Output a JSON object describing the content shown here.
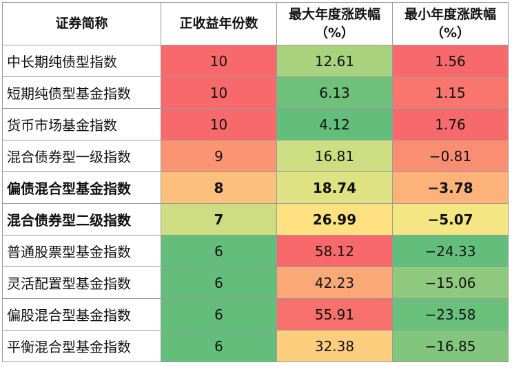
{
  "headers": [
    {
      "line1": "证券简称",
      "line2": ""
    },
    {
      "line1": "正收益年份数",
      "line2": ""
    },
    {
      "line1": "最大年度涨跌幅",
      "line2": "（%）"
    },
    {
      "line1": "最小年度涨跌幅",
      "line2": "（%）"
    }
  ],
  "rows": [
    {
      "name": "中长期纯债型指数",
      "positive_years": "10",
      "max_change": "12.61",
      "min_change": "1.56",
      "bold": false,
      "colors": [
        "#f8696b",
        "#a9d27f",
        "#f8696b"
      ]
    },
    {
      "name": "短期纯债型基金指数",
      "positive_years": "10",
      "max_change": "6.13",
      "min_change": "1.15",
      "bold": false,
      "colors": [
        "#f8696b",
        "#6fc07b",
        "#f8766d"
      ]
    },
    {
      "name": "货币市场基金指数",
      "positive_years": "10",
      "max_change": "4.12",
      "min_change": "1.76",
      "bold": false,
      "colors": [
        "#f8696b",
        "#63be7b",
        "#f8696b"
      ]
    },
    {
      "name": "混合债券型一级指数",
      "positive_years": "9",
      "max_change": "16.81",
      "min_change": "−0.81",
      "bold": false,
      "colors": [
        "#fa9473",
        "#cddd82",
        "#f98e72"
      ]
    },
    {
      "name": "偏债混合型基金指数",
      "positive_years": "8",
      "max_change": "18.74",
      "min_change": "−3.78",
      "bold": true,
      "colors": [
        "#fdc07c",
        "#dee283",
        "#fcb279"
      ]
    },
    {
      "name": "混合债券型二级指数",
      "positive_years": "7",
      "max_change": "26.99",
      "min_change": "−5.07",
      "bold": true,
      "colors": [
        "#cfdd82",
        "#fee282",
        "#f4e783"
      ]
    },
    {
      "name": "普通股票型基金指数",
      "positive_years": "6",
      "max_change": "58.12",
      "min_change": "−24.33",
      "bold": false,
      "colors": [
        "#63be7b",
        "#f8696b",
        "#63be7b"
      ]
    },
    {
      "name": "灵活配置型基金指数",
      "positive_years": "6",
      "max_change": "42.23",
      "min_change": "−15.06",
      "bold": false,
      "colors": [
        "#63be7b",
        "#fba877",
        "#8fc97e"
      ]
    },
    {
      "name": "偏股混合型基金指数",
      "positive_years": "6",
      "max_change": "55.91",
      "min_change": "−23.58",
      "bold": false,
      "colors": [
        "#63be7b",
        "#f8706c",
        "#68c07b"
      ]
    },
    {
      "name": "平衡混合型基金指数",
      "positive_years": "6",
      "max_change": "32.38",
      "min_change": "−16.85",
      "bold": false,
      "colors": [
        "#63be7b",
        "#fdce7e",
        "#82c57d"
      ]
    }
  ]
}
